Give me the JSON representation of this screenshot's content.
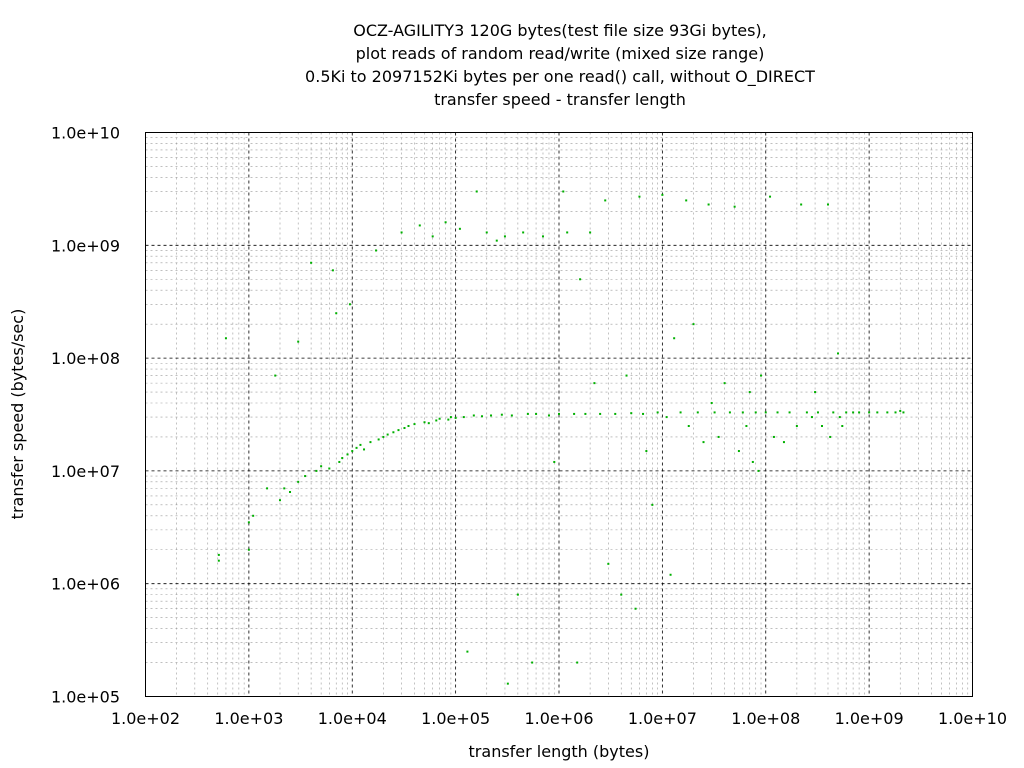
{
  "chart_data": {
    "type": "scatter",
    "title_lines": [
      "OCZ-AGILITY3 120G bytes(test file size 93Gi bytes),",
      "plot reads of random read/write (mixed size range)",
      "0.5Ki to 2097152Ki bytes per one read() call, without O_DIRECT",
      "transfer speed - transfer length"
    ],
    "xlabel": "transfer length (bytes)",
    "ylabel": "transfer speed (bytes/sec)",
    "x_scale": "log",
    "y_scale": "log",
    "xlim": [
      100,
      10000000000
    ],
    "ylim": [
      100000,
      10000000000
    ],
    "x_ticks": [
      {
        "value": 100,
        "label": "1.0e+02"
      },
      {
        "value": 1000,
        "label": "1.0e+03"
      },
      {
        "value": 10000,
        "label": "1.0e+04"
      },
      {
        "value": 100000,
        "label": "1.0e+05"
      },
      {
        "value": 1000000,
        "label": "1.0e+06"
      },
      {
        "value": 10000000,
        "label": "1.0e+07"
      },
      {
        "value": 100000000,
        "label": "1.0e+08"
      },
      {
        "value": 1000000000,
        "label": "1.0e+09"
      },
      {
        "value": 10000000000,
        "label": "1.0e+10"
      }
    ],
    "y_ticks": [
      {
        "value": 100000,
        "label": "1.0e+05"
      },
      {
        "value": 1000000,
        "label": "1.0e+06"
      },
      {
        "value": 10000000,
        "label": "1.0e+07"
      },
      {
        "value": 100000000,
        "label": "1.0e+08"
      },
      {
        "value": 1000000000,
        "label": "1.0e+09"
      },
      {
        "value": 10000000000,
        "label": "1.0e+10"
      }
    ],
    "grid": true,
    "point_color": "#00b000",
    "series": [
      {
        "values": [
          [
            512,
            1800000
          ],
          [
            512,
            1600000
          ],
          [
            600,
            150000000
          ],
          [
            1000,
            2000000
          ],
          [
            1000,
            3500000
          ],
          [
            1100,
            4000000
          ],
          [
            1500,
            7000000
          ],
          [
            1800,
            70000000
          ],
          [
            2000,
            5500000
          ],
          [
            2200,
            7000000
          ],
          [
            2500,
            6500000
          ],
          [
            3000,
            140000000
          ],
          [
            3000,
            8000000
          ],
          [
            3500,
            9000000
          ],
          [
            4000,
            700000000
          ],
          [
            4500,
            10000000
          ],
          [
            5000,
            11000000
          ],
          [
            6000,
            10500000
          ],
          [
            6500,
            600000000
          ],
          [
            7000,
            250000000
          ],
          [
            7500,
            12000000
          ],
          [
            8000,
            13000000
          ],
          [
            9000,
            14000000
          ],
          [
            9500,
            300000000
          ],
          [
            10000,
            15000000
          ],
          [
            11000,
            16000000
          ],
          [
            12000,
            17000000
          ],
          [
            13000,
            15500000
          ],
          [
            15000,
            18000000
          ],
          [
            17000,
            900000000
          ],
          [
            18000,
            19000000
          ],
          [
            20000,
            20000000
          ],
          [
            22000,
            21000000
          ],
          [
            25000,
            22000000
          ],
          [
            28000,
            23000000
          ],
          [
            30000,
            1300000000
          ],
          [
            32000,
            24000000
          ],
          [
            35000,
            25000000
          ],
          [
            40000,
            26000000
          ],
          [
            45000,
            1500000000
          ],
          [
            50000,
            27000000
          ],
          [
            55000,
            26500000
          ],
          [
            60000,
            1200000000
          ],
          [
            65000,
            28000000
          ],
          [
            70000,
            29000000
          ],
          [
            80000,
            1600000000
          ],
          [
            85000,
            28500000
          ],
          [
            90000,
            30000000
          ],
          [
            100000,
            29500000
          ],
          [
            110000,
            1400000000
          ],
          [
            120000,
            30000000
          ],
          [
            130000,
            250000
          ],
          [
            150000,
            31000000
          ],
          [
            160000,
            3000000000
          ],
          [
            180000,
            30500000
          ],
          [
            200000,
            1300000000
          ],
          [
            220000,
            31000000
          ],
          [
            250000,
            1100000000
          ],
          [
            280000,
            31500000
          ],
          [
            300000,
            1200000000
          ],
          [
            320000,
            130000
          ],
          [
            350000,
            31000000
          ],
          [
            400000,
            800000
          ],
          [
            450000,
            1300000000
          ],
          [
            500000,
            32000000
          ],
          [
            550000,
            200000
          ],
          [
            600000,
            32000000
          ],
          [
            700000,
            1200000000
          ],
          [
            800000,
            31000000
          ],
          [
            900000,
            12000000
          ],
          [
            1000000,
            32000000
          ],
          [
            1100000,
            3000000000
          ],
          [
            1200000,
            1300000000
          ],
          [
            1400000,
            32000000
          ],
          [
            1500000,
            200000
          ],
          [
            1600000,
            500000000
          ],
          [
            1800000,
            32000000
          ],
          [
            2000000,
            1300000000
          ],
          [
            2200000,
            60000000
          ],
          [
            2500000,
            32000000
          ],
          [
            2800000,
            2500000000
          ],
          [
            3000000,
            1500000
          ],
          [
            3500000,
            32000000
          ],
          [
            4000000,
            800000
          ],
          [
            4500000,
            70000000
          ],
          [
            5000000,
            32500000
          ],
          [
            5500000,
            600000
          ],
          [
            6000000,
            2700000000
          ],
          [
            6500000,
            32000000
          ],
          [
            7000000,
            15000000
          ],
          [
            8000000,
            5000000
          ],
          [
            9000000,
            33000000
          ],
          [
            10000000,
            2800000000
          ],
          [
            11000000,
            30000000
          ],
          [
            12000000,
            1200000
          ],
          [
            13000000,
            150000000
          ],
          [
            15000000,
            33000000
          ],
          [
            17000000,
            2500000000
          ],
          [
            18000000,
            25000000
          ],
          [
            20000000,
            200000000
          ],
          [
            22000000,
            33000000
          ],
          [
            25000000,
            18000000
          ],
          [
            28000000,
            2300000000
          ],
          [
            30000000,
            40000000
          ],
          [
            32000000,
            33000000
          ],
          [
            35000000,
            20000000
          ],
          [
            40000000,
            60000000
          ],
          [
            45000000,
            33000000
          ],
          [
            50000000,
            2200000000
          ],
          [
            55000000,
            15000000
          ],
          [
            60000000,
            33000000
          ],
          [
            65000000,
            25000000
          ],
          [
            70000000,
            50000000
          ],
          [
            75000000,
            12000000
          ],
          [
            80000000,
            33000000
          ],
          [
            85000000,
            10000000
          ],
          [
            90000000,
            70000000
          ],
          [
            100000000,
            33000000
          ],
          [
            110000000,
            2700000000
          ],
          [
            120000000,
            20000000
          ],
          [
            130000000,
            33000000
          ],
          [
            150000000,
            18000000
          ],
          [
            170000000,
            33000000
          ],
          [
            200000000,
            25000000
          ],
          [
            220000000,
            2300000000
          ],
          [
            250000000,
            33000000
          ],
          [
            280000000,
            30000000
          ],
          [
            300000000,
            50000000
          ],
          [
            320000000,
            33000000
          ],
          [
            350000000,
            25000000
          ],
          [
            400000000,
            2300000000
          ],
          [
            420000000,
            20000000
          ],
          [
            450000000,
            33000000
          ],
          [
            500000000,
            110000000
          ],
          [
            520000000,
            30000000
          ],
          [
            550000000,
            25000000
          ],
          [
            600000000,
            33000000
          ],
          [
            700000000,
            33000000
          ],
          [
            800000000,
            33000000
          ],
          [
            1000000000,
            33000000
          ],
          [
            1200000000,
            33000000
          ],
          [
            1500000000,
            33000000
          ],
          [
            1800000000,
            33000000
          ],
          [
            2000000000,
            34000000
          ],
          [
            2147483648,
            33000000
          ]
        ]
      }
    ]
  }
}
